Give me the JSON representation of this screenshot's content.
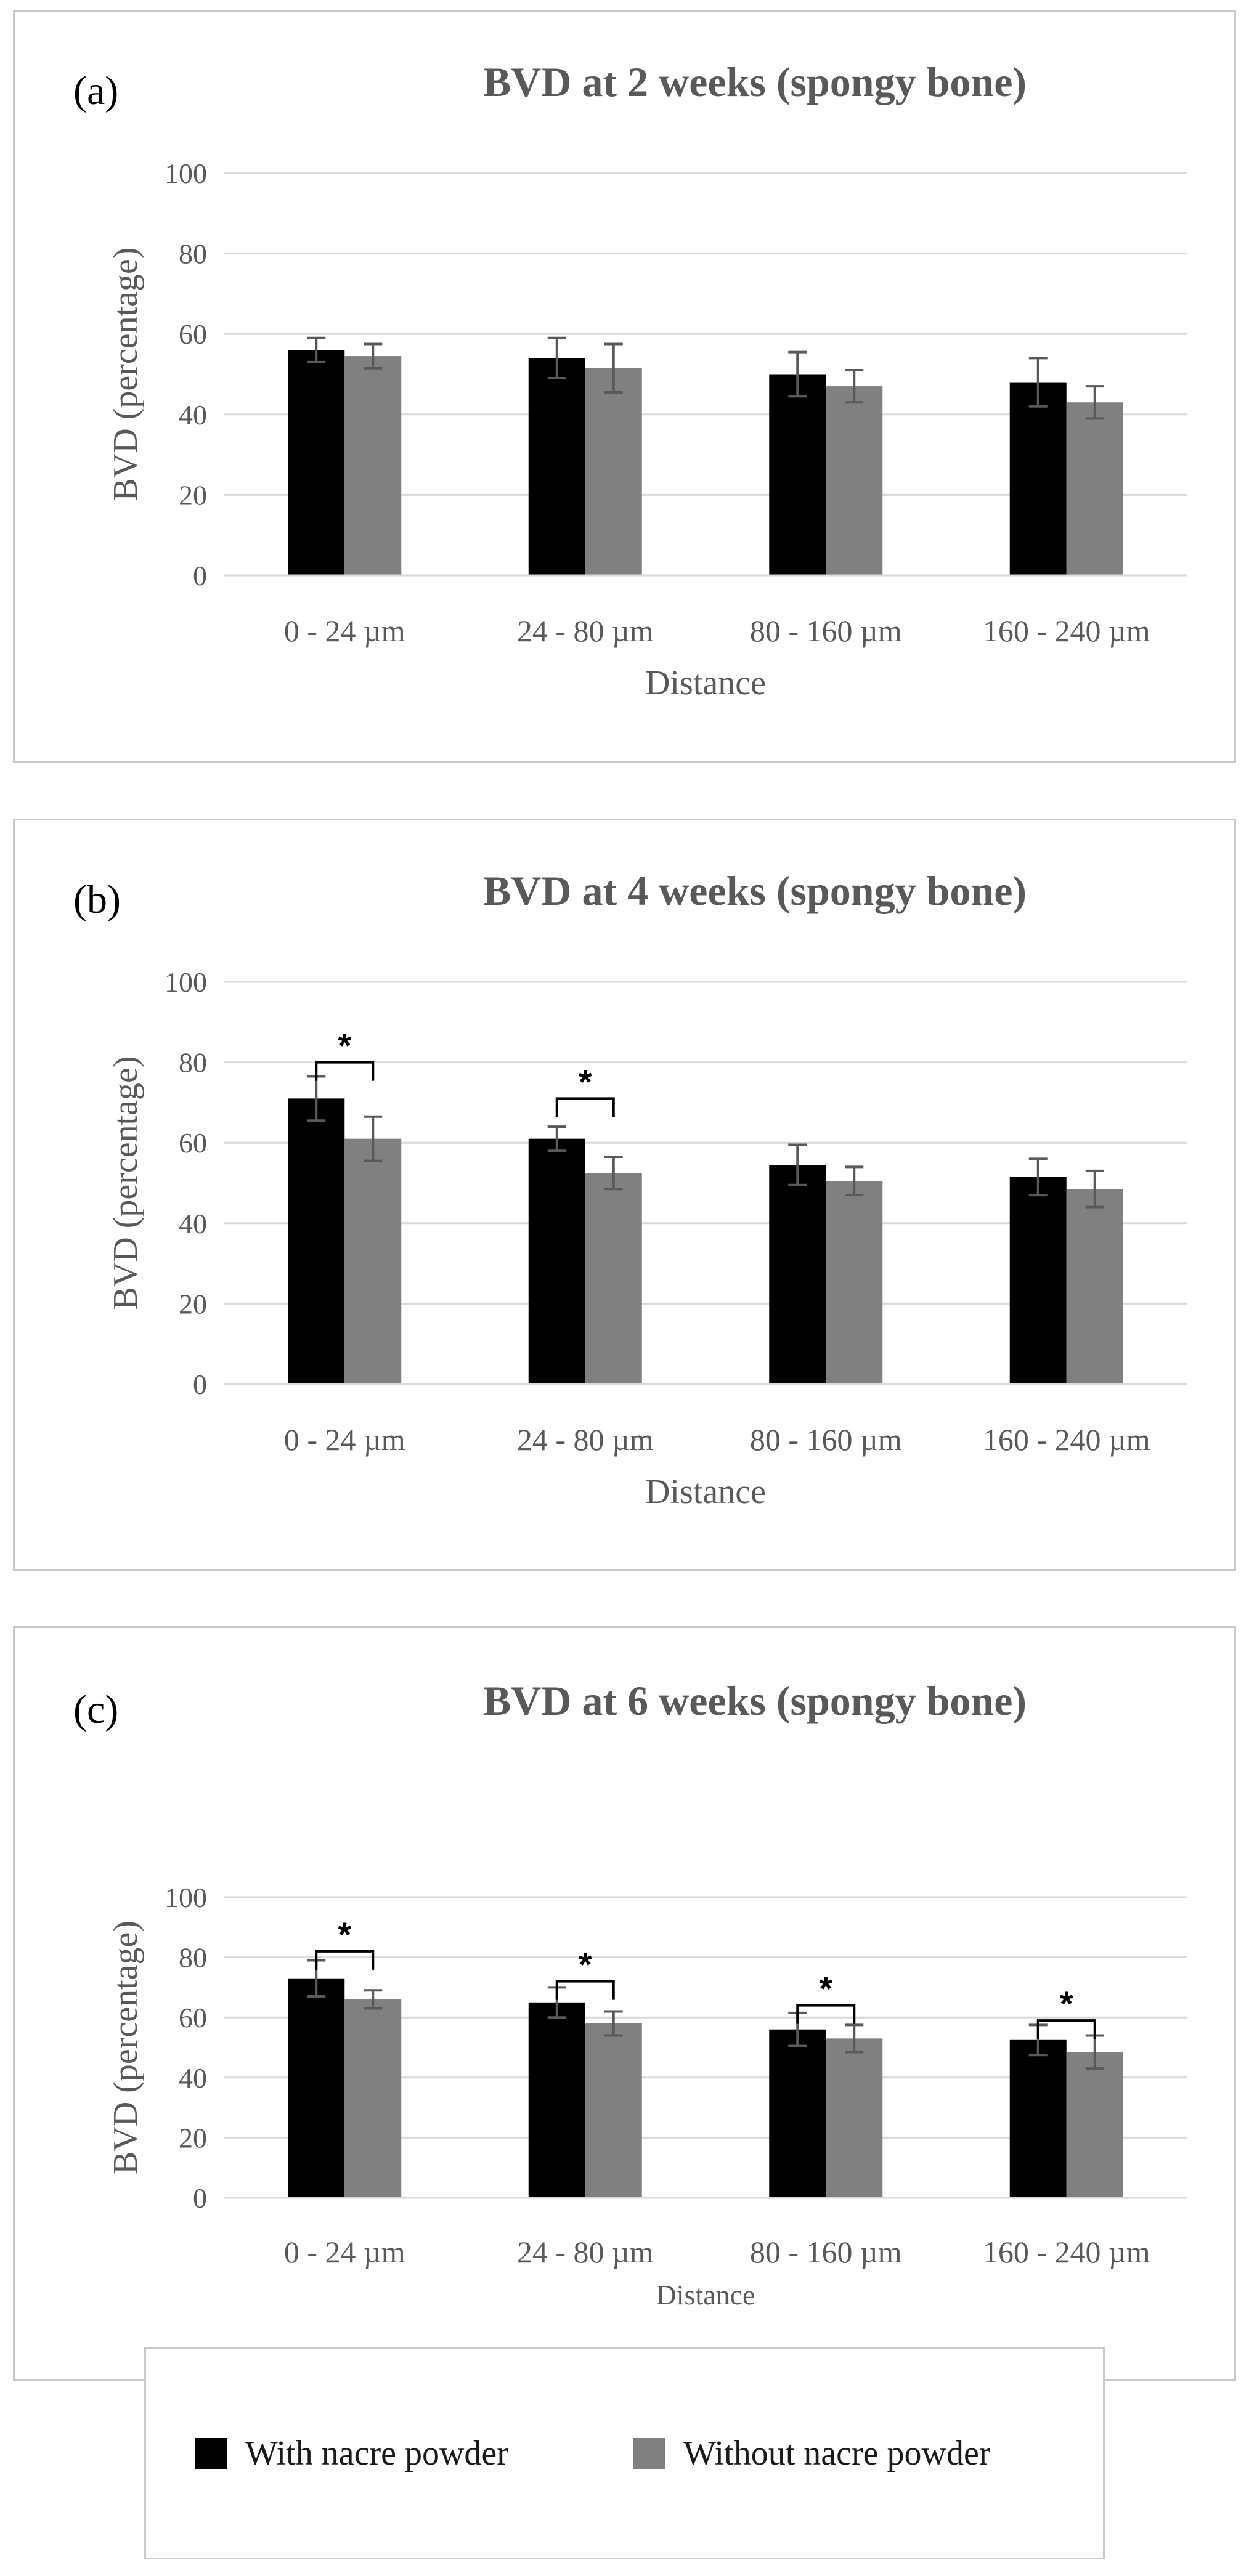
{
  "chart_data": [
    {
      "panel_label": "(a)",
      "type": "bar",
      "title": "BVD at 2 weeks (spongy bone)",
      "xlabel": "Distance",
      "ylabel": "BVD (percentage)",
      "ylim": [
        0,
        100
      ],
      "yticks": [
        "0",
        "20",
        "40",
        "60",
        "80",
        "100"
      ],
      "grid": true,
      "categories": [
        "0 - 24 µm",
        "24 - 80 µm",
        "80 - 160 µm",
        "160 - 240 µm"
      ],
      "series": [
        {
          "name": "With nacre powder",
          "color": "#000000",
          "values": [
            56,
            54,
            50,
            48
          ],
          "errors": [
            3,
            5,
            5.5,
            6
          ]
        },
        {
          "name": "Without nacre powder",
          "color": "#808080",
          "values": [
            54.5,
            51.5,
            47,
            43
          ],
          "errors": [
            3,
            6,
            4,
            4
          ]
        }
      ],
      "significance": []
    },
    {
      "panel_label": "(b)",
      "type": "bar",
      "title": "BVD at 4 weeks (spongy bone)",
      "xlabel": "Distance",
      "ylabel": "BVD (percentage)",
      "ylim": [
        0,
        100
      ],
      "yticks": [
        "0",
        "20",
        "40",
        "60",
        "80",
        "100"
      ],
      "grid": true,
      "categories": [
        "0 - 24 µm",
        "24 - 80 µm",
        "80 - 160 µm",
        "160 - 240 µm"
      ],
      "series": [
        {
          "name": "With nacre powder",
          "color": "#000000",
          "values": [
            71,
            61,
            54.5,
            51.5
          ],
          "errors": [
            5.5,
            3,
            5,
            4.5
          ]
        },
        {
          "name": "Without nacre powder",
          "color": "#808080",
          "values": [
            61,
            52.5,
            50.5,
            48.5
          ],
          "errors": [
            5.5,
            4,
            3.5,
            4.5
          ]
        }
      ],
      "significance": [
        {
          "category": 0,
          "label": "*",
          "y": 80
        },
        {
          "category": 1,
          "label": "*",
          "y": 71
        }
      ]
    },
    {
      "panel_label": "(c)",
      "type": "bar",
      "title": "BVD at 6 weeks (spongy bone)",
      "xlabel": "Distance",
      "ylabel": "BVD (percentage)",
      "ylim": [
        0,
        100
      ],
      "yticks": [
        "0",
        "20",
        "40",
        "60",
        "80",
        "100"
      ],
      "grid": true,
      "categories": [
        "0 - 24 µm",
        "24 - 80 µm",
        "80 - 160 µm",
        "160 - 240 µm"
      ],
      "series": [
        {
          "name": "With nacre powder",
          "color": "#000000",
          "values": [
            73,
            65,
            56,
            52.5
          ],
          "errors": [
            6,
            5,
            5.5,
            5
          ]
        },
        {
          "name": "Without nacre powder",
          "color": "#808080",
          "values": [
            66,
            58,
            53,
            48.5
          ],
          "errors": [
            3,
            4,
            4.5,
            5.5
          ]
        }
      ],
      "significance": [
        {
          "category": 0,
          "label": "*",
          "y": 82
        },
        {
          "category": 1,
          "label": "*",
          "y": 72
        },
        {
          "category": 2,
          "label": "*",
          "y": 64
        },
        {
          "category": 3,
          "label": "*",
          "y": 59
        }
      ]
    }
  ],
  "legend": {
    "items": [
      {
        "label": "With nacre powder",
        "color": "#000000"
      },
      {
        "label": "Without nacre powder",
        "color": "#808080"
      }
    ]
  }
}
